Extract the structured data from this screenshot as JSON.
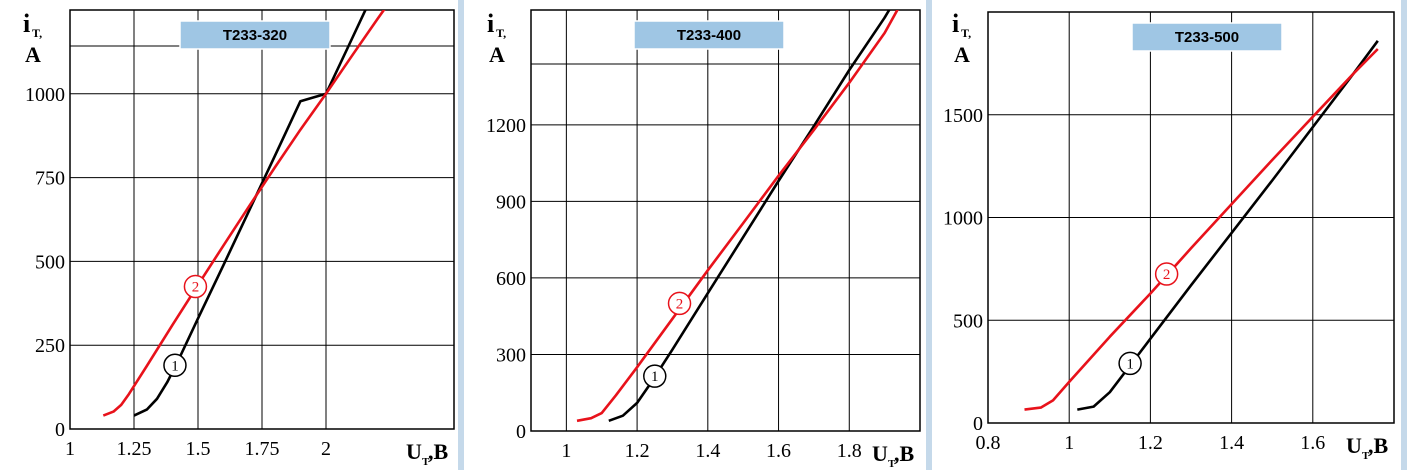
{
  "chart_data": [
    {
      "type": "line",
      "title": "T233-320",
      "ylabel": "iT, A",
      "ylabel_main": "i",
      "ylabel_sub": "T,",
      "ylabel_unit": "A",
      "xlabel": "UT,B",
      "xlabel_main": "U",
      "xlabel_sub": "T",
      "xlabel_unit": ",B",
      "xlim": [
        1.0,
        2.5
      ],
      "ylim": [
        0,
        1250
      ],
      "grid": true,
      "xticks": [
        1,
        1.25,
        1.5,
        1.75,
        2
      ],
      "xtick_labels": [
        "1",
        "1.25",
        "1.5",
        "1.75",
        "2"
      ],
      "yticks": [
        0,
        250,
        500,
        750,
        1000
      ],
      "ytick_labels": [
        "0",
        "250",
        "500",
        "750",
        "1000"
      ],
      "series": [
        {
          "name": "1",
          "color": "#000000",
          "points": [
            [
              1.25,
              40
            ],
            [
              1.3,
              58
            ],
            [
              1.34,
              90
            ],
            [
              1.38,
              140
            ],
            [
              1.42,
              200
            ],
            [
              1.5,
              330
            ],
            [
              1.6,
              490
            ],
            [
              1.7,
              652
            ],
            [
              1.8,
              814
            ],
            [
              1.9,
              978
            ],
            [
              2.0,
              1000
            ],
            [
              2.1,
              1162
            ],
            [
              2.2,
              1325
            ],
            [
              2.28,
              1380
            ]
          ]
        },
        {
          "name": "2",
          "color": "#e8121b",
          "points": [
            [
              1.13,
              40
            ],
            [
              1.17,
              52
            ],
            [
              1.2,
              72
            ],
            [
              1.23,
              104
            ],
            [
              1.3,
              188
            ],
            [
              1.4,
              310
            ],
            [
              1.5,
              430
            ],
            [
              1.6,
              548
            ],
            [
              1.7,
              665
            ],
            [
              1.8,
              780
            ],
            [
              1.9,
              893
            ],
            [
              2.0,
              1000
            ],
            [
              2.1,
              1112
            ],
            [
              2.2,
              1222
            ],
            [
              2.28,
              1308
            ]
          ]
        }
      ],
      "markers": [
        {
          "label": "1",
          "x": 1.41,
          "y": 190,
          "color": "#000000"
        },
        {
          "label": "2",
          "x": 1.49,
          "y": 425,
          "color": "#e8121b"
        }
      ]
    },
    {
      "type": "line",
      "title": "T233-400",
      "ylabel": "iT, A",
      "ylabel_main": "i",
      "ylabel_sub": "T,",
      "ylabel_unit": "A",
      "xlabel": "UT,B",
      "xlabel_main": "U",
      "xlabel_sub": "T",
      "xlabel_unit": ",B",
      "xlim": [
        0.9,
        2.0
      ],
      "ylim": [
        0,
        1650
      ],
      "grid": true,
      "xticks": [
        1,
        1.2,
        1.4,
        1.6,
        1.8
      ],
      "xtick_labels": [
        "1",
        "1.2",
        "1.4",
        "1.6",
        "1.8"
      ],
      "yticks": [
        0,
        300,
        600,
        900,
        1200
      ],
      "ytick_labels": [
        "0",
        "300",
        "600",
        "900",
        "1200"
      ],
      "series": [
        {
          "name": "1",
          "color": "#000000",
          "points": [
            [
              1.12,
              40
            ],
            [
              1.16,
              60
            ],
            [
              1.2,
              110
            ],
            [
              1.24,
              190
            ],
            [
              1.3,
              320
            ],
            [
              1.4,
              540
            ],
            [
              1.5,
              760
            ],
            [
              1.6,
              980
            ],
            [
              1.7,
              1195
            ],
            [
              1.8,
              1415
            ],
            [
              1.9,
              1620
            ],
            [
              1.93,
              1690
            ]
          ]
        },
        {
          "name": "2",
          "color": "#e8121b",
          "points": [
            [
              1.03,
              40
            ],
            [
              1.07,
              50
            ],
            [
              1.1,
              70
            ],
            [
              1.14,
              140
            ],
            [
              1.2,
              250
            ],
            [
              1.3,
              440
            ],
            [
              1.4,
              630
            ],
            [
              1.5,
              815
            ],
            [
              1.6,
              1000
            ],
            [
              1.7,
              1180
            ],
            [
              1.8,
              1365
            ],
            [
              1.9,
              1560
            ],
            [
              1.94,
              1660
            ]
          ]
        }
      ],
      "markers": [
        {
          "label": "1",
          "x": 1.25,
          "y": 215,
          "color": "#000000"
        },
        {
          "label": "2",
          "x": 1.32,
          "y": 500,
          "color": "#e8121b"
        }
      ]
    },
    {
      "type": "line",
      "title": "T233-500",
      "ylabel": "iT, A",
      "ylabel_main": "i",
      "ylabel_sub": "T,",
      "ylabel_unit": "A",
      "xlabel": "UT,B",
      "xlabel_main": "U",
      "xlabel_sub": "T",
      "xlabel_unit": ",B",
      "xlim": [
        0.8,
        1.8
      ],
      "ylim": [
        0,
        2000
      ],
      "grid": true,
      "xticks": [
        0.8,
        1,
        1.2,
        1.4,
        1.6
      ],
      "xtick_labels": [
        "0.8",
        "1",
        "1.2",
        "1.4",
        "1.6"
      ],
      "yticks": [
        0,
        500,
        1000,
        1500
      ],
      "ytick_labels": [
        "0",
        "500",
        "1000",
        "1500"
      ],
      "series": [
        {
          "name": "1",
          "color": "#000000",
          "points": [
            [
              1.02,
              65
            ],
            [
              1.06,
              80
            ],
            [
              1.1,
              150
            ],
            [
              1.15,
              280
            ],
            [
              1.2,
              410
            ],
            [
              1.3,
              670
            ],
            [
              1.4,
              925
            ],
            [
              1.5,
              1180
            ],
            [
              1.6,
              1440
            ],
            [
              1.7,
              1700
            ],
            [
              1.76,
              1860
            ]
          ]
        },
        {
          "name": "2",
          "color": "#e8121b",
          "points": [
            [
              0.89,
              65
            ],
            [
              0.93,
              75
            ],
            [
              0.96,
              110
            ],
            [
              1.0,
              200
            ],
            [
              1.1,
              420
            ],
            [
              1.2,
              630
            ],
            [
              1.3,
              850
            ],
            [
              1.4,
              1065
            ],
            [
              1.5,
              1280
            ],
            [
              1.6,
              1490
            ],
            [
              1.7,
              1700
            ],
            [
              1.76,
              1820
            ]
          ]
        }
      ],
      "markers": [
        {
          "label": "1",
          "x": 1.15,
          "y": 290,
          "color": "#000000"
        },
        {
          "label": "2",
          "x": 1.24,
          "y": 725,
          "color": "#e8121b"
        }
      ]
    }
  ]
}
